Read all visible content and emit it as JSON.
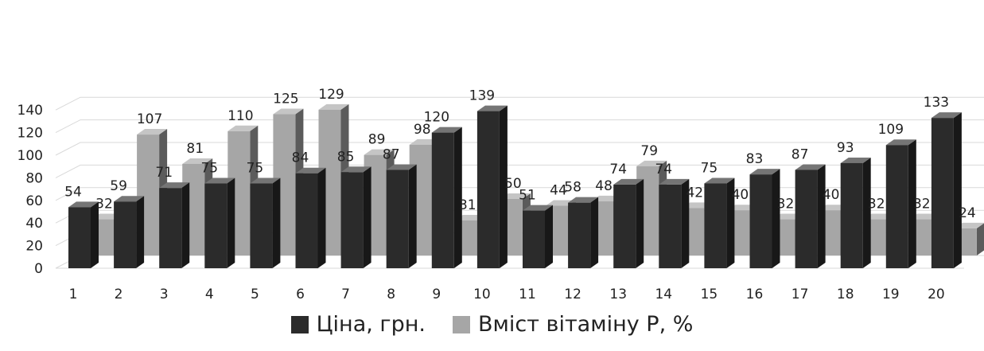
{
  "chart_data": {
    "type": "bar",
    "categories": [
      "1",
      "2",
      "3",
      "4",
      "5",
      "6",
      "7",
      "8",
      "9",
      "10",
      "11",
      "12",
      "13",
      "14",
      "15",
      "16",
      "17",
      "18",
      "19",
      "20"
    ],
    "series": [
      {
        "name": "Ціна, грн.",
        "color": "#2b2b2b",
        "values": [
          54,
          59,
          71,
          75,
          75,
          84,
          85,
          87,
          120,
          139,
          51,
          58,
          74,
          74,
          75,
          83,
          87,
          93,
          109,
          133
        ]
      },
      {
        "name": "Вміст вітаміну Р, %",
        "color": "#a6a6a6",
        "values": [
          32,
          107,
          81,
          110,
          125,
          129,
          89,
          98,
          31,
          50,
          44,
          48,
          79,
          42,
          40,
          32,
          40,
          32,
          32,
          24
        ]
      }
    ],
    "y_ticks": [
      "0",
      "20",
      "40",
      "60",
      "80",
      "100",
      "120",
      "140"
    ],
    "ylim": [
      0,
      140
    ],
    "grid": true,
    "legend_position": "bottom",
    "style": "3d-clustered-column"
  }
}
